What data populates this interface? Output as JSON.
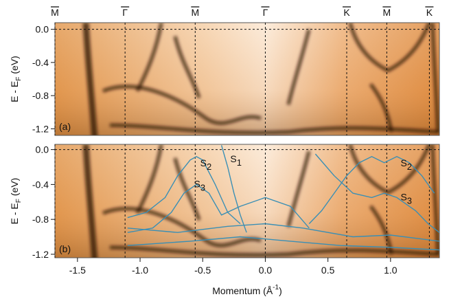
{
  "chart_data": [
    {
      "type": "heatmap",
      "panel_label": "(a)",
      "xlim": [
        -1.68,
        1.39
      ],
      "ylim": [
        -1.28,
        0.08
      ],
      "yticks": [
        {
          "value": 0,
          "label": "0.0"
        },
        -0.4,
        -0.8,
        -1.2
      ],
      "y_label": {
        "main": "E - E",
        "sub": "F",
        "unit": "(eV)"
      },
      "symmetry_points": [
        {
          "value": -1.68,
          "label": "M"
        },
        {
          "value": -1.12,
          "label": "Γ"
        },
        {
          "value": -0.56,
          "label": "M"
        },
        {
          "value": 0,
          "label": "Γ"
        },
        {
          "value": 0.65,
          "label": "K"
        },
        {
          "value": 0.97,
          "label": "M"
        },
        {
          "value": 1.31,
          "label": "K"
        }
      ]
    },
    {
      "type": "heatmap",
      "panel_label": "(b)",
      "xlim": [
        -1.68,
        1.39
      ],
      "ylim": [
        -1.24,
        0.06
      ],
      "yticks": [
        {
          "value": 0,
          "label": "0.0"
        },
        -0.4,
        -0.8,
        -1.2
      ],
      "xticks": [
        -1.5,
        {
          "value": -1,
          "label": "-1.0"
        },
        -0.5,
        {
          "value": 0,
          "label": "0.0"
        },
        0.5,
        {
          "value": 1,
          "label": "1.0"
        }
      ],
      "y_label": {
        "main": "E - E",
        "sub": "F",
        "unit": "(eV)"
      },
      "x_label": {
        "main": "Momentum (Å",
        "sup": "-1",
        "end": ")"
      },
      "series": [
        {
          "color": "#3a8fb5",
          "x": [
            -1.1,
            -0.95,
            -0.8,
            -0.7,
            -0.6,
            -0.55,
            -0.5,
            -0.4,
            -0.3,
            -0.2
          ],
          "values": [
            -0.78,
            -0.72,
            -0.55,
            -0.3,
            -0.12,
            -0.08,
            -0.12,
            -0.4,
            -0.72,
            -0.85
          ]
        },
        {
          "color": "#3a8fb5",
          "x": [
            -1.1,
            -0.9,
            -0.75,
            -0.65,
            -0.55,
            -0.45,
            -0.35,
            -0.2,
            0,
            0.2,
            0.35
          ],
          "values": [
            -0.95,
            -0.9,
            -0.72,
            -0.5,
            -0.4,
            -0.5,
            -0.75,
            -0.65,
            -0.55,
            -0.65,
            -0.9
          ]
        },
        {
          "color": "#3a8fb5",
          "x": [
            -0.35,
            -0.3,
            -0.25,
            -0.2,
            -0.15
          ],
          "values": [
            0.05,
            -0.2,
            -0.5,
            -0.75,
            -0.95
          ]
        },
        {
          "color": "#3a8fb5",
          "x": [
            0.35,
            0.45,
            0.55,
            0.65,
            0.75,
            0.85,
            0.95,
            1.05,
            1.15,
            1.25,
            1.35
          ],
          "values": [
            -0.85,
            -0.7,
            -0.5,
            -0.3,
            -0.15,
            -0.08,
            -0.15,
            -0.08,
            -0.15,
            -0.3,
            -0.5
          ]
        },
        {
          "color": "#3a8fb5",
          "x": [
            0.4,
            0.55,
            0.7,
            0.85,
            0.95,
            1.05,
            1.2,
            1.3,
            1.39
          ],
          "values": [
            -0.05,
            -0.3,
            -0.5,
            -0.55,
            -0.5,
            -0.55,
            -0.7,
            -0.85,
            -0.95
          ]
        },
        {
          "color": "#3a8fb5",
          "x": [
            -1.1,
            -0.7,
            -0.3,
            0,
            0.3,
            0.7,
            1,
            1.39
          ],
          "values": [
            -0.9,
            -0.95,
            -0.88,
            -0.85,
            -0.9,
            -1,
            -0.98,
            -1.05
          ]
        },
        {
          "color": "#3a8fb5",
          "x": [
            -1.1,
            -0.6,
            -0.2,
            0.2,
            0.6,
            1,
            1.39
          ],
          "values": [
            -1.1,
            -1.05,
            -1,
            -1.05,
            -1.1,
            -1.12,
            -1.15
          ]
        }
      ],
      "annotations": [
        {
          "text": "S",
          "sub": "2",
          "x": -0.52,
          "y": -0.13
        },
        {
          "text": "S",
          "sub": "1",
          "x": -0.28,
          "y": -0.08
        },
        {
          "text": "S",
          "sub": "3",
          "x": -0.57,
          "y": -0.37
        },
        {
          "text": "S",
          "sub": "2",
          "x": 1.08,
          "y": -0.13
        },
        {
          "text": "S",
          "sub": "3",
          "x": 1.08,
          "y": -0.52
        }
      ]
    }
  ]
}
